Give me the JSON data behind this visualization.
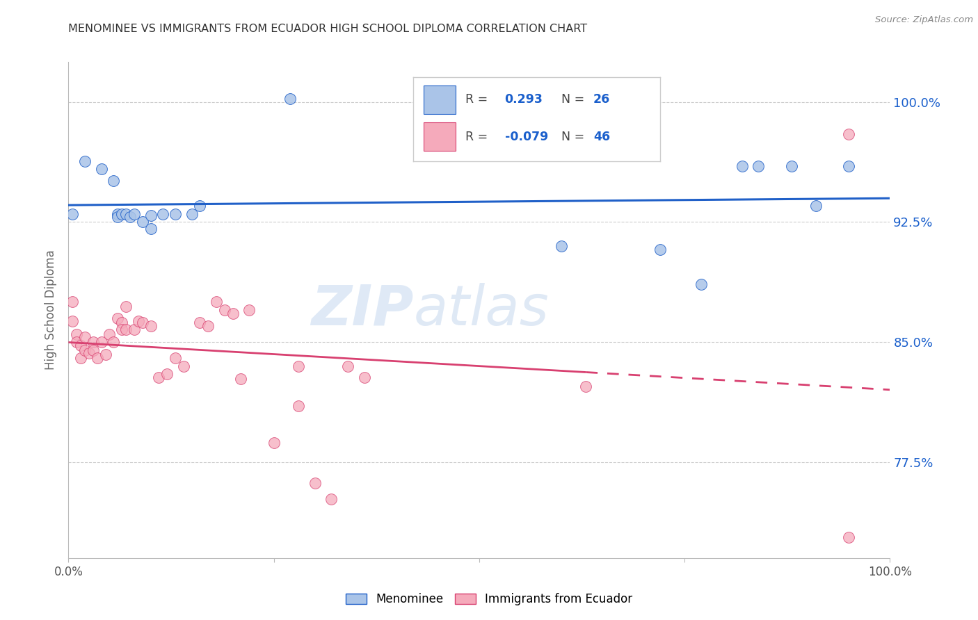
{
  "title": "MENOMINEE VS IMMIGRANTS FROM ECUADOR HIGH SCHOOL DIPLOMA CORRELATION CHART",
  "source": "Source: ZipAtlas.com",
  "ylabel": "High School Diploma",
  "yticks": [
    0.775,
    0.85,
    0.925,
    1.0
  ],
  "ytick_labels": [
    "77.5%",
    "85.0%",
    "92.5%",
    "100.0%"
  ],
  "xlim": [
    0.0,
    1.0
  ],
  "ylim": [
    0.715,
    1.025
  ],
  "blue_R": "0.293",
  "blue_N": "26",
  "pink_R": "-0.079",
  "pink_N": "46",
  "blue_color": "#aac4e8",
  "blue_line_color": "#2060c8",
  "pink_color": "#f5aabb",
  "pink_line_color": "#d84070",
  "legend_label_blue": "Menominee",
  "legend_label_pink": "Immigrants from Ecuador",
  "watermark_zip": "ZIP",
  "watermark_atlas": "atlas",
  "blue_points_x": [
    0.005,
    0.02,
    0.04,
    0.055,
    0.06,
    0.06,
    0.065,
    0.07,
    0.075,
    0.08,
    0.09,
    0.1,
    0.1,
    0.115,
    0.13,
    0.15,
    0.16,
    0.27,
    0.6,
    0.72,
    0.77,
    0.82,
    0.84,
    0.88,
    0.91,
    0.95
  ],
  "blue_points_y": [
    0.93,
    0.963,
    0.958,
    0.951,
    0.93,
    0.928,
    0.93,
    0.93,
    0.928,
    0.93,
    0.925,
    0.929,
    0.921,
    0.93,
    0.93,
    0.93,
    0.935,
    1.002,
    0.91,
    0.908,
    0.886,
    0.96,
    0.96,
    0.96,
    0.935,
    0.96
  ],
  "pink_points_x": [
    0.005,
    0.005,
    0.01,
    0.01,
    0.015,
    0.015,
    0.02,
    0.02,
    0.025,
    0.03,
    0.03,
    0.035,
    0.04,
    0.045,
    0.05,
    0.055,
    0.06,
    0.065,
    0.065,
    0.07,
    0.07,
    0.08,
    0.085,
    0.09,
    0.1,
    0.11,
    0.12,
    0.13,
    0.14,
    0.16,
    0.17,
    0.18,
    0.19,
    0.2,
    0.21,
    0.22,
    0.25,
    0.28,
    0.3,
    0.32,
    0.34,
    0.36,
    0.28,
    0.63,
    0.95,
    0.95
  ],
  "pink_points_y": [
    0.875,
    0.863,
    0.855,
    0.85,
    0.848,
    0.84,
    0.853,
    0.845,
    0.843,
    0.85,
    0.845,
    0.84,
    0.85,
    0.842,
    0.855,
    0.85,
    0.865,
    0.862,
    0.858,
    0.872,
    0.858,
    0.858,
    0.863,
    0.862,
    0.86,
    0.828,
    0.83,
    0.84,
    0.835,
    0.862,
    0.86,
    0.875,
    0.87,
    0.868,
    0.827,
    0.87,
    0.787,
    0.835,
    0.762,
    0.752,
    0.835,
    0.828,
    0.81,
    0.822,
    0.98,
    0.728
  ],
  "background_color": "#ffffff",
  "grid_color": "#cccccc",
  "title_color": "#333333",
  "right_tick_color": "#1a5fcc",
  "pink_line_split_x": 0.63
}
